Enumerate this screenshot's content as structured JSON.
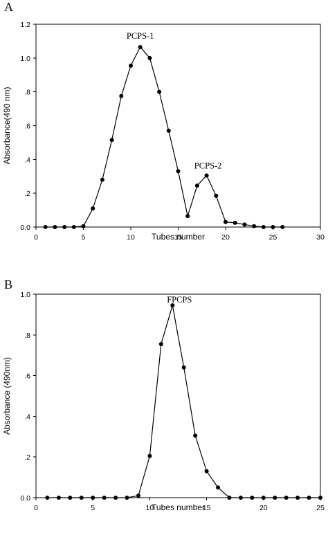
{
  "chart_data": [
    {
      "panel": "A",
      "type": "line",
      "xlabel": "Tubes number",
      "ylabel": "Absorbance(490 nm)",
      "xlim": [
        0,
        30
      ],
      "ylim": [
        0,
        1.2
      ],
      "xticks": [
        0,
        5,
        10,
        15,
        20,
        25,
        30
      ],
      "xtick_labels": [
        "0",
        "5",
        "10",
        "15",
        "20",
        "25",
        "30"
      ],
      "yticks": [
        0,
        0.2,
        0.4,
        0.6,
        0.8,
        1.0,
        1.2
      ],
      "ytick_labels": [
        "0.0",
        ".2",
        ".4",
        ".6",
        ".8",
        "1.0",
        "1.2"
      ],
      "grid": false,
      "series": [
        {
          "x": [
            1,
            2,
            3,
            4,
            5,
            6,
            7,
            8,
            9,
            10,
            11,
            12,
            13,
            14,
            15,
            16,
            17,
            18,
            19,
            20,
            21,
            22,
            23,
            24,
            25,
            26
          ],
          "values": [
            0.0,
            0.0,
            0.0,
            0.0,
            0.005,
            0.11,
            0.28,
            0.515,
            0.775,
            0.955,
            1.065,
            1.0,
            0.8,
            0.57,
            0.33,
            0.065,
            0.245,
            0.305,
            0.185,
            0.03,
            0.025,
            0.015,
            0.005,
            0.0,
            0.0,
            0.0
          ]
        }
      ],
      "annotations": [
        {
          "text": "PCPS-1",
          "x": 11,
          "y": 1.065
        },
        {
          "text": "PCPS-2",
          "x": 18,
          "y": 0.305
        }
      ]
    },
    {
      "panel": "B",
      "type": "line",
      "xlabel": "Tubes number",
      "ylabel": "Absorbance (490nm)",
      "xlim": [
        0,
        25
      ],
      "ylim": [
        0,
        1.0
      ],
      "xticks": [
        0,
        5,
        10,
        15,
        20,
        25
      ],
      "xtick_labels": [
        "0",
        "5",
        "10",
        "15",
        "20",
        "25"
      ],
      "yticks": [
        0,
        0.2,
        0.4,
        0.6,
        0.8,
        1.0
      ],
      "ytick_labels": [
        "0.0",
        ".2",
        ".4",
        ".6",
        ".8",
        "1.0"
      ],
      "grid": false,
      "series": [
        {
          "x": [
            1,
            2,
            3,
            4,
            5,
            6,
            7,
            8,
            9,
            10,
            11,
            12,
            13,
            14,
            15,
            16,
            17,
            18,
            19,
            20,
            21,
            22,
            23,
            24,
            25
          ],
          "values": [
            0.0,
            0.0,
            0.0,
            0.0,
            0.0,
            0.0,
            0.0,
            0.0,
            0.01,
            0.205,
            0.755,
            0.945,
            0.64,
            0.305,
            0.13,
            0.05,
            0.0,
            0.0,
            0.0,
            0.0,
            0.0,
            0.0,
            0.0,
            0.0,
            0.0
          ]
        }
      ],
      "annotations": [
        {
          "text": "FPCPS",
          "x": 12,
          "y": 0.945
        }
      ]
    }
  ]
}
